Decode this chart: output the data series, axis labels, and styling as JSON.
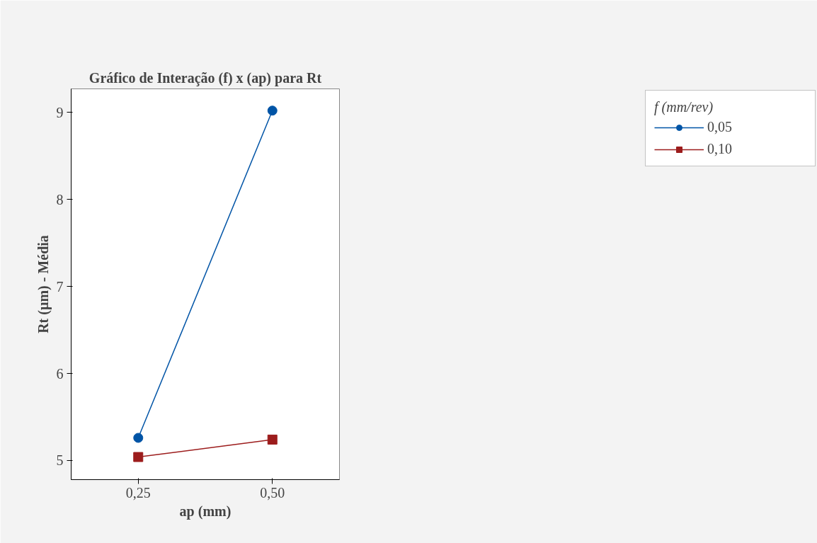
{
  "chart_data": {
    "type": "line",
    "title": "Gráfico de Interação (f) x (ap) para Rt",
    "xlabel": "ap (mm)",
    "ylabel": "Rt (µm) - Média",
    "legend_title": "f (mm/rev)",
    "categories": [
      "0,25",
      "0,50"
    ],
    "series": [
      {
        "name": "0,05",
        "color": "#0054a6",
        "values": [
          5.26,
          9.02
        ],
        "marker": "circle"
      },
      {
        "name": "0,10",
        "color": "#9c1c1c",
        "values": [
          5.04,
          5.24
        ],
        "marker": "square"
      }
    ],
    "ylim": [
      4.78,
      9.27
    ],
    "yticks": [
      5,
      6,
      7,
      8,
      9
    ],
    "grid": false,
    "legend": "right",
    "line_style": "solid"
  }
}
